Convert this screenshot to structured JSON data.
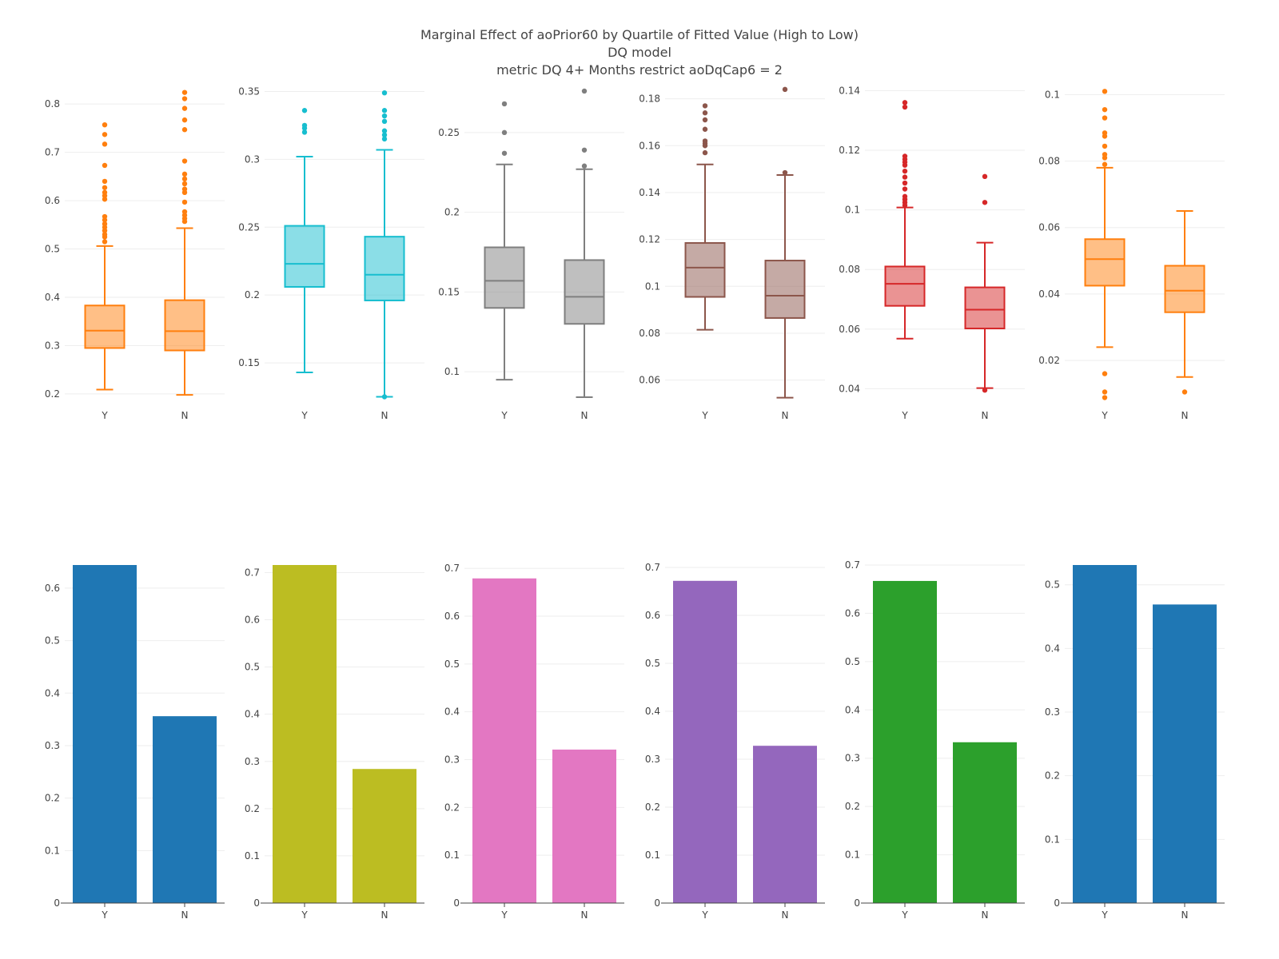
{
  "title": {
    "line1": "Marginal Effect of aoPrior60 by Quartile of Fitted Value (High to Low)",
    "line2": "DQ model",
    "line3": "metric DQ 4+ Months restrict aoDqCap6 = 2"
  },
  "chart_data": [
    {
      "type": "box",
      "row": "top",
      "col": 1,
      "color": "#ff7f0e",
      "categories": [
        "Y",
        "N"
      ],
      "ylim": [
        0.18,
        0.84
      ],
      "yticks": [
        0.2,
        0.3,
        0.4,
        0.5,
        0.6,
        0.7,
        0.8
      ],
      "ytick_labels": [
        "0.2",
        "0.3",
        "0.4",
        "0.5",
        "0.6",
        "0.7",
        "0.8"
      ],
      "boxes": [
        {
          "name": "Y",
          "lower_whisker": 0.209,
          "q1": 0.295,
          "median": 0.331,
          "q3": 0.383,
          "upper_whisker": 0.506,
          "outliers": [
            0.515,
            0.525,
            0.53,
            0.538,
            0.545,
            0.552,
            0.56,
            0.567,
            0.603,
            0.61,
            0.617,
            0.627,
            0.64,
            0.673,
            0.717,
            0.737,
            0.757
          ]
        },
        {
          "name": "N",
          "lower_whisker": 0.198,
          "q1": 0.29,
          "median": 0.33,
          "q3": 0.394,
          "upper_whisker": 0.543,
          "outliers": [
            0.557,
            0.563,
            0.57,
            0.577,
            0.597,
            0.617,
            0.624,
            0.635,
            0.645,
            0.655,
            0.682,
            0.747,
            0.767,
            0.791,
            0.811,
            0.824
          ]
        }
      ]
    },
    {
      "type": "box",
      "row": "top",
      "col": 2,
      "color": "#17becf",
      "categories": [
        "Y",
        "N"
      ],
      "ylim": [
        0.12,
        0.355
      ],
      "yticks": [
        0.15,
        0.2,
        0.25,
        0.3,
        0.35
      ],
      "ytick_labels": [
        "0.15",
        "0.2",
        "0.25",
        "0.3",
        "0.35"
      ],
      "boxes": [
        {
          "name": "Y",
          "lower_whisker": 0.143,
          "q1": 0.206,
          "median": 0.223,
          "q3": 0.251,
          "upper_whisker": 0.302,
          "outliers": [
            0.32,
            0.323,
            0.325,
            0.336
          ]
        },
        {
          "name": "N",
          "lower_whisker": 0.125,
          "q1": 0.196,
          "median": 0.215,
          "q3": 0.243,
          "upper_whisker": 0.307,
          "outliers": [
            0.125,
            0.315,
            0.318,
            0.321,
            0.328,
            0.332,
            0.336,
            0.349
          ]
        }
      ]
    },
    {
      "type": "box",
      "row": "top",
      "col": 3,
      "color": "#7f7f7f",
      "categories": [
        "Y",
        "N"
      ],
      "ylim": [
        0.08,
        0.28
      ],
      "yticks": [
        0.1,
        0.15,
        0.2,
        0.25
      ],
      "ytick_labels": [
        "0.1",
        "0.15",
        "0.2",
        "0.25"
      ],
      "boxes": [
        {
          "name": "Y",
          "lower_whisker": 0.095,
          "q1": 0.14,
          "median": 0.157,
          "q3": 0.178,
          "upper_whisker": 0.23,
          "outliers": [
            0.237,
            0.25,
            0.268
          ]
        },
        {
          "name": "N",
          "lower_whisker": 0.084,
          "q1": 0.13,
          "median": 0.147,
          "q3": 0.17,
          "upper_whisker": 0.227,
          "outliers": [
            0.229,
            0.239,
            0.276
          ]
        }
      ]
    },
    {
      "type": "box",
      "row": "top",
      "col": 4,
      "color": "#8c564b",
      "categories": [
        "Y",
        "N"
      ],
      "ylim": [
        0.05,
        0.186
      ],
      "yticks": [
        0.06,
        0.08,
        0.1,
        0.12,
        0.14,
        0.16,
        0.18
      ],
      "ytick_labels": [
        "0.06",
        "0.08",
        "0.1",
        "0.12",
        "0.14",
        "0.16",
        "0.18"
      ],
      "boxes": [
        {
          "name": "Y",
          "lower_whisker": 0.0815,
          "q1": 0.0955,
          "median": 0.108,
          "q3": 0.1185,
          "upper_whisker": 0.152,
          "outliers": [
            0.157,
            0.16,
            0.161,
            0.162,
            0.167,
            0.171,
            0.174,
            0.177
          ]
        },
        {
          "name": "N",
          "lower_whisker": 0.0525,
          "q1": 0.0865,
          "median": 0.096,
          "q3": 0.111,
          "upper_whisker": 0.1475,
          "outliers": [
            0.1485,
            0.184
          ]
        }
      ]
    },
    {
      "type": "box",
      "row": "top",
      "col": 5,
      "color": "#d62728",
      "categories": [
        "Y",
        "N"
      ],
      "ylim": [
        0.035,
        0.142
      ],
      "yticks": [
        0.04,
        0.06,
        0.08,
        0.1,
        0.12,
        0.14
      ],
      "ytick_labels": [
        "0.04",
        "0.06",
        "0.08",
        "0.1",
        "0.12",
        "0.14"
      ],
      "boxes": [
        {
          "name": "Y",
          "lower_whisker": 0.0568,
          "q1": 0.0678,
          "median": 0.0752,
          "q3": 0.081,
          "upper_whisker": 0.1008,
          "outliers": [
            0.1015,
            0.1025,
            0.1035,
            0.1045,
            0.107,
            0.109,
            0.111,
            0.113,
            0.115,
            0.116,
            0.117,
            0.118,
            0.1345,
            0.136
          ]
        },
        {
          "name": "N",
          "lower_whisker": 0.0402,
          "q1": 0.0602,
          "median": 0.0665,
          "q3": 0.074,
          "upper_whisker": 0.089,
          "outliers": [
            0.0395,
            0.1025,
            0.1112
          ]
        }
      ]
    },
    {
      "type": "box",
      "row": "top",
      "col": 6,
      "color": "#ff7f0e",
      "categories": [
        "Y",
        "N"
      ],
      "ylim": [
        0.007,
        0.103
      ],
      "yticks": [
        0.02,
        0.04,
        0.06,
        0.08,
        0.1
      ],
      "ytick_labels": [
        "0.02",
        "0.04",
        "0.06",
        "0.08",
        "0.1"
      ],
      "boxes": [
        {
          "name": "Y",
          "lower_whisker": 0.024,
          "q1": 0.0425,
          "median": 0.0505,
          "q3": 0.0565,
          "upper_whisker": 0.078,
          "outliers": [
            0.0088,
            0.0105,
            0.016,
            0.079,
            0.081,
            0.082,
            0.0845,
            0.0875,
            0.0885,
            0.093,
            0.0955,
            0.101
          ]
        },
        {
          "name": "N",
          "lower_whisker": 0.015,
          "q1": 0.0345,
          "median": 0.041,
          "q3": 0.0485,
          "upper_whisker": 0.065,
          "outliers": [
            0.0105
          ]
        }
      ]
    },
    {
      "type": "bar",
      "row": "bottom",
      "col": 1,
      "color": "#1f77b4",
      "categories": [
        "Y",
        "N"
      ],
      "values": [
        0.644,
        0.356
      ],
      "ylim": [
        0,
        0.644
      ],
      "yticks": [
        0,
        0.1,
        0.2,
        0.3,
        0.4,
        0.5,
        0.6
      ],
      "ytick_labels": [
        "0",
        "0.1",
        "0.2",
        "0.3",
        "0.4",
        "0.5",
        "0.6"
      ]
    },
    {
      "type": "bar",
      "row": "bottom",
      "col": 2,
      "color": "#bcbd22",
      "categories": [
        "Y",
        "N"
      ],
      "values": [
        0.716,
        0.284
      ],
      "ylim": [
        0,
        0.716
      ],
      "yticks": [
        0,
        0.1,
        0.2,
        0.3,
        0.4,
        0.5,
        0.6,
        0.7
      ],
      "ytick_labels": [
        "0",
        "0.1",
        "0.2",
        "0.3",
        "0.4",
        "0.5",
        "0.6",
        "0.7"
      ]
    },
    {
      "type": "bar",
      "row": "bottom",
      "col": 3,
      "color": "#e377c2",
      "categories": [
        "Y",
        "N"
      ],
      "values": [
        0.679,
        0.321
      ],
      "ylim": [
        0,
        0.707
      ],
      "yticks": [
        0,
        0.1,
        0.2,
        0.3,
        0.4,
        0.5,
        0.6,
        0.7
      ],
      "ytick_labels": [
        "0",
        "0.1",
        "0.2",
        "0.3",
        "0.4",
        "0.5",
        "0.6",
        "0.7"
      ]
    },
    {
      "type": "bar",
      "row": "bottom",
      "col": 4,
      "color": "#9467bd",
      "categories": [
        "Y",
        "N"
      ],
      "values": [
        0.672,
        0.328
      ],
      "ylim": [
        0,
        0.705
      ],
      "yticks": [
        0,
        0.1,
        0.2,
        0.3,
        0.4,
        0.5,
        0.6,
        0.7
      ],
      "ytick_labels": [
        "0",
        "0.1",
        "0.2",
        "0.3",
        "0.4",
        "0.5",
        "0.6",
        "0.7"
      ]
    },
    {
      "type": "bar",
      "row": "bottom",
      "col": 5,
      "color": "#2ca02c",
      "categories": [
        "Y",
        "N"
      ],
      "values": [
        0.667,
        0.333
      ],
      "ylim": [
        0,
        0.7
      ],
      "yticks": [
        0,
        0.1,
        0.2,
        0.3,
        0.4,
        0.5,
        0.6,
        0.7
      ],
      "ytick_labels": [
        "0",
        "0.1",
        "0.2",
        "0.3",
        "0.4",
        "0.5",
        "0.6",
        "0.7"
      ]
    },
    {
      "type": "bar",
      "row": "bottom",
      "col": 6,
      "color": "#1f77b4",
      "categories": [
        "Y",
        "N"
      ],
      "values": [
        0.531,
        0.469
      ],
      "ylim": [
        0,
        0.531
      ],
      "yticks": [
        0,
        0.1,
        0.2,
        0.3,
        0.4,
        0.5
      ],
      "ytick_labels": [
        "0",
        "0.1",
        "0.2",
        "0.3",
        "0.4",
        "0.5"
      ]
    }
  ]
}
